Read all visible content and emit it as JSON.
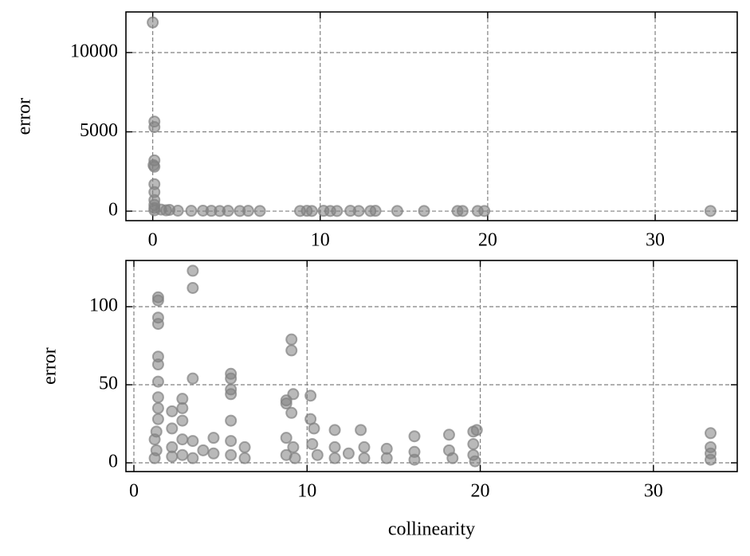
{
  "chart_data": [
    {
      "type": "scatter",
      "y_label": "error",
      "color": "#808080",
      "grid": true,
      "xlim": [
        -1.6,
        34.9
      ],
      "xticks": [
        0,
        10,
        20,
        30
      ],
      "ylim": [
        -600,
        12560
      ],
      "yticks": [
        0,
        5000,
        10000
      ],
      "x": [
        0,
        0.1,
        0.1,
        0.1,
        0.05,
        0.1,
        0.1,
        0.1,
        0.1,
        0.1,
        0.1,
        0.1,
        0.5,
        0.8,
        1,
        1.5,
        2.3,
        3,
        3.5,
        4,
        4.5,
        5.2,
        5.7,
        6.4,
        8.8,
        9.2,
        9.5,
        10.2,
        10.6,
        11,
        11.8,
        12.3,
        13,
        13.3,
        14.6,
        16.2,
        18.2,
        18.5,
        19.4,
        19.8,
        33.3
      ],
      "values": [
        11900,
        5650,
        5300,
        3200,
        2900,
        2800,
        1700,
        1200,
        700,
        400,
        200,
        50,
        100,
        50,
        80,
        30,
        20,
        30,
        20,
        10,
        20,
        10,
        20,
        10,
        10,
        20,
        10,
        20,
        10,
        10,
        20,
        10,
        10,
        20,
        10,
        10,
        10,
        10,
        10,
        10,
        10
      ]
    },
    {
      "type": "scatter",
      "y_label": "error",
      "x_label": "collinearity",
      "color": "#808080",
      "grid": true,
      "xlim": [
        -0.46,
        34.84
      ],
      "xticks": [
        0,
        10,
        20,
        30
      ],
      "ylim": [
        -5.6,
        129.6
      ],
      "yticks": [
        0,
        50,
        100
      ],
      "x": [
        1.4,
        1.4,
        1.4,
        1.4,
        1.4,
        1.4,
        1.4,
        1.4,
        1.4,
        1.4,
        1.3,
        1.2,
        1.3,
        1.2,
        2.2,
        2.2,
        2.2,
        2.2,
        2.8,
        2.8,
        2.8,
        2.8,
        2.8,
        3.4,
        3.4,
        3.4,
        3.4,
        3.4,
        4.0,
        4.6,
        4.6,
        5.6,
        5.6,
        5.6,
        5.6,
        5.6,
        5.6,
        5.6,
        6.4,
        6.4,
        8.8,
        8.8,
        8.8,
        8.8,
        9.1,
        9.1,
        9.2,
        9.1,
        9.2,
        9.3,
        10.2,
        10.2,
        10.4,
        10.3,
        10.6,
        11.6,
        11.6,
        11.6,
        12.4,
        13.1,
        13.3,
        13.3,
        14.6,
        14.6,
        16.2,
        16.2,
        16.2,
        18.2,
        18.2,
        18.4,
        19.6,
        19.8,
        19.6,
        19.6,
        19.7,
        33.3,
        33.3,
        33.3,
        33.3
      ],
      "values": [
        106,
        104,
        93,
        89,
        68,
        63,
        52,
        42,
        35,
        28,
        20,
        15,
        8,
        3,
        33,
        22,
        10,
        4,
        41,
        35,
        27,
        15,
        5,
        123,
        112,
        54,
        14,
        3,
        8,
        16,
        6,
        57,
        54,
        47,
        44,
        27,
        14,
        5,
        10,
        3,
        40,
        38,
        16,
        5,
        79,
        72,
        44,
        32,
        10,
        3,
        43,
        28,
        22,
        12,
        5,
        21,
        10,
        3,
        6,
        21,
        10,
        3,
        9,
        3,
        17,
        7,
        2,
        18,
        8,
        3,
        20,
        21,
        12,
        5,
        1,
        19,
        10,
        6,
        2
      ]
    }
  ]
}
